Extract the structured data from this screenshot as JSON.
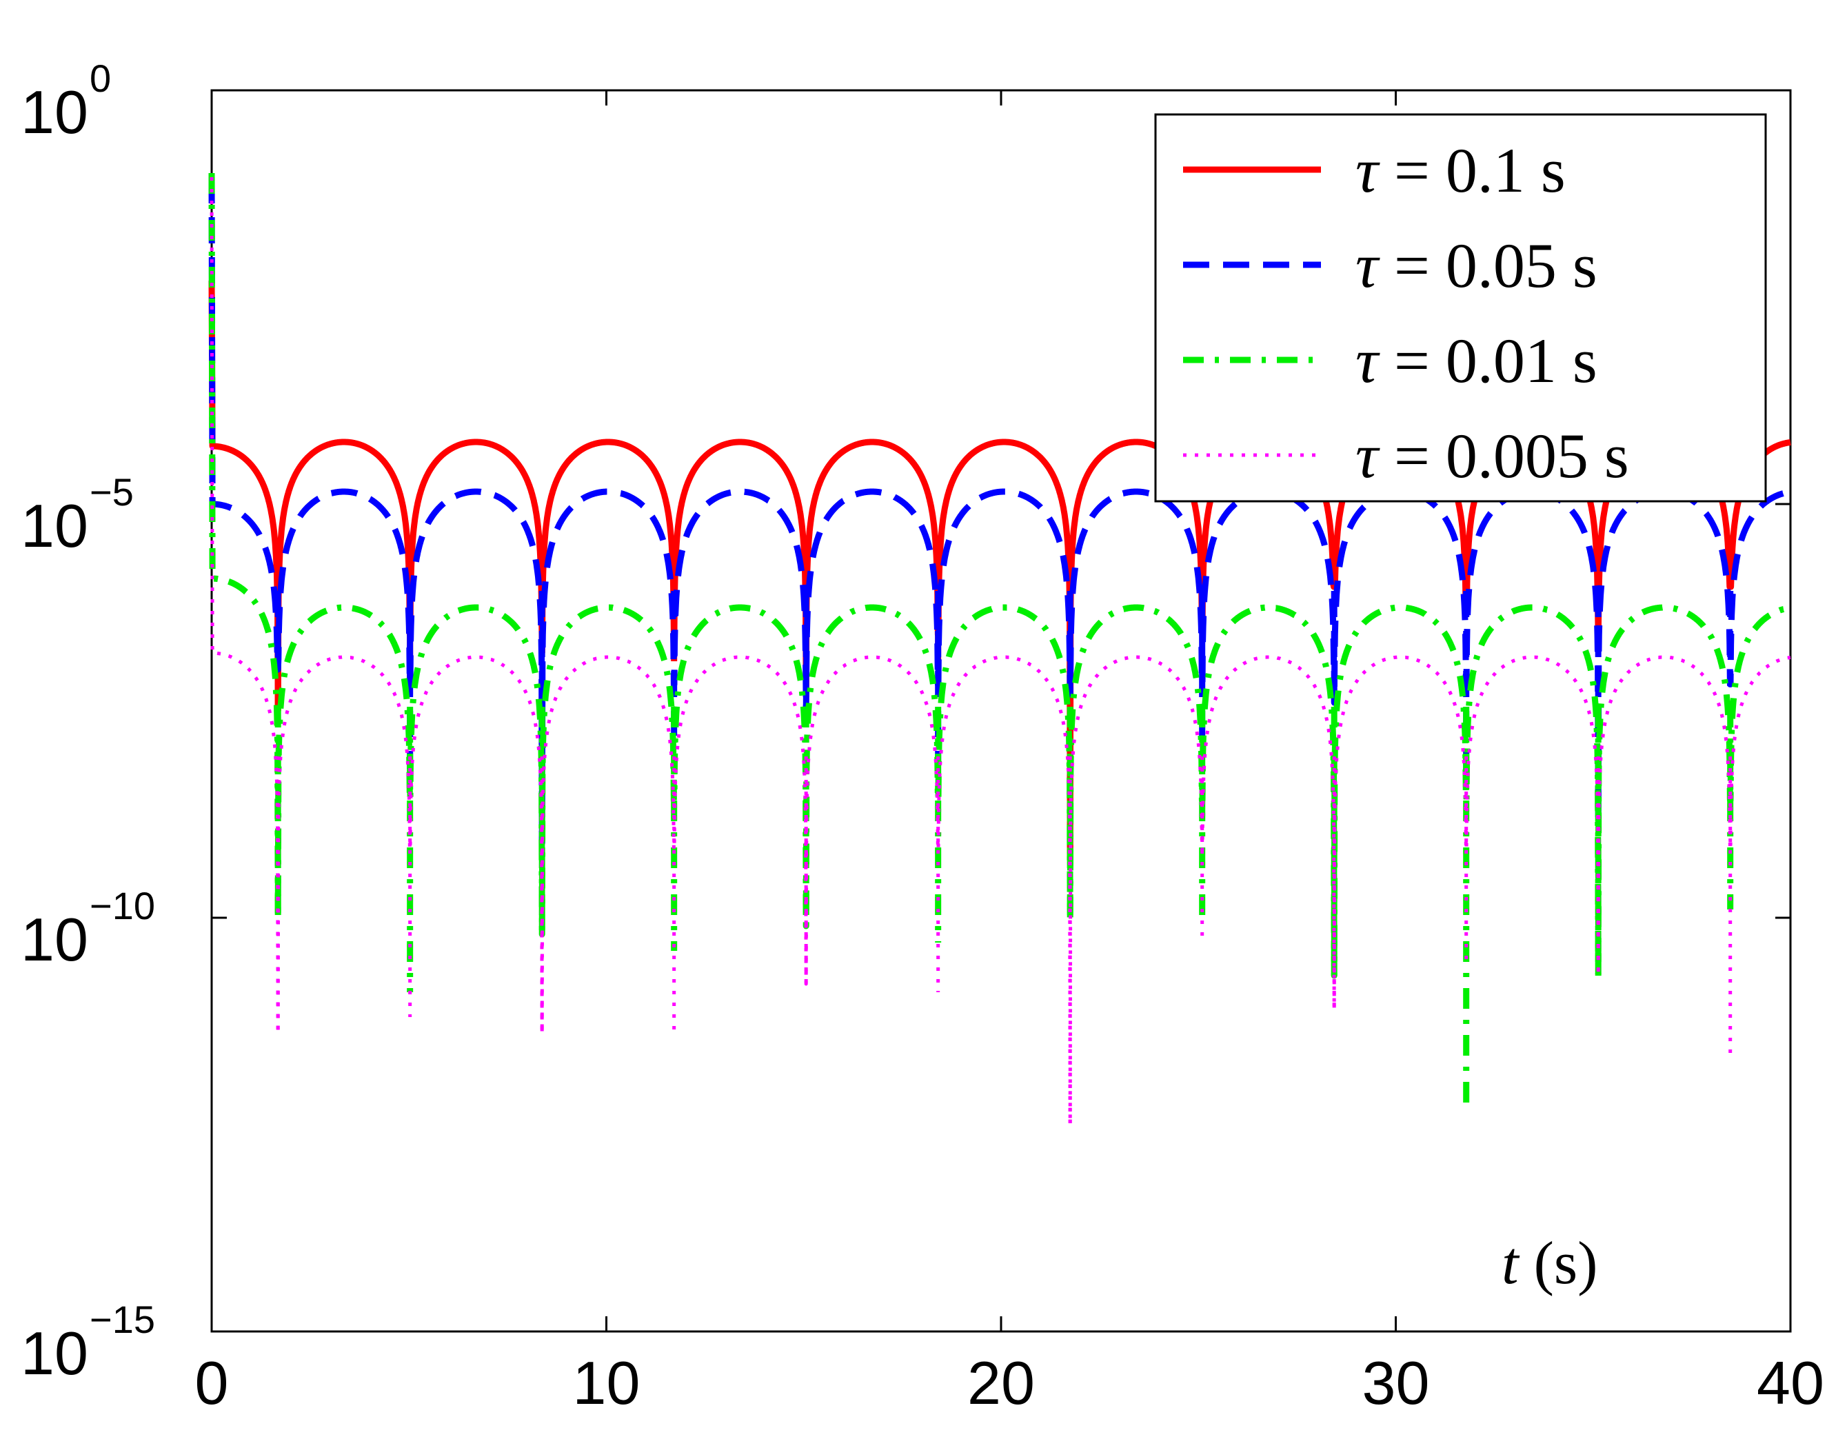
{
  "chart_data": {
    "type": "line",
    "title": "",
    "xlabel": "t (s)",
    "xlabel_parts": {
      "var": "t",
      "unit": " (s)"
    },
    "ylabel": "",
    "xlim": [
      0,
      40
    ],
    "ylim_log10": [
      -15,
      0
    ],
    "y_scale": "log",
    "grid": false,
    "legend_position": "top-right",
    "x_ticks": [
      {
        "value": 0,
        "label": "0"
      },
      {
        "value": 10,
        "label": "10"
      },
      {
        "value": 20,
        "label": "20"
      },
      {
        "value": 30,
        "label": "30"
      },
      {
        "value": 40,
        "label": "40"
      }
    ],
    "y_ticks": [
      {
        "exp": 0,
        "base": "10",
        "sup": "0"
      },
      {
        "exp": -5,
        "base": "10",
        "sup": "−5"
      },
      {
        "exp": -10,
        "base": "10",
        "sup": "−10"
      },
      {
        "exp": -15,
        "base": "10",
        "sup": "−15"
      }
    ],
    "period": 3.345,
    "first_dip": 1.68,
    "series": [
      {
        "name": "τ = 0.1 s",
        "legend_value": "0.1 s",
        "color": "#ff0000",
        "style": "solid",
        "initial_peak_log10": -2.3,
        "plateau_start_log10": -4.3,
        "arch_peak_log10": -4.25,
        "dip_floor_log10": [
          -7.5,
          -7.2,
          -6.8,
          -6.9,
          -7.3,
          -7.0,
          -9.3,
          -6.5,
          -6.0,
          -6.3,
          -6.6,
          -6.0
        ]
      },
      {
        "name": "τ = 0.05 s",
        "legend_value": "0.05 s",
        "color": "#0000ff",
        "style": "dashed",
        "initial_peak_log10": -1.05,
        "plateau_start_log10": -5.0,
        "arch_peak_log10": -4.85,
        "dip_floor_log10": [
          -7.0,
          -8.2,
          -9.1,
          -7.8,
          -7.5,
          -8.1,
          -7.3,
          -7.9,
          -7.4,
          -8.3,
          -8.8,
          -7.2
        ]
      },
      {
        "name": "τ = 0.01 s",
        "legend_value": "0.01 s",
        "color": "#00ee00",
        "style": "dashdot",
        "initial_peak_log10": -1.0,
        "plateau_start_log10": -5.9,
        "arch_peak_log10": -6.25,
        "dip_floor_log10": [
          -10.0,
          -10.9,
          -10.2,
          -10.4,
          -10.1,
          -10.3,
          -10.0,
          -10.0,
          -10.7,
          -12.3,
          -10.7,
          -9.9
        ]
      },
      {
        "name": "τ = 0.005 s",
        "legend_value": "0.005 s",
        "color": "#ff00ff",
        "style": "dotted",
        "initial_peak_log10": -1.05,
        "plateau_start_log10": -6.8,
        "arch_peak_log10": -6.85,
        "dip_floor_log10": [
          -11.4,
          -11.2,
          -11.4,
          -11.4,
          -10.8,
          -10.9,
          -12.5,
          -10.3,
          -11.1,
          -10.5,
          -10.7,
          -11.7
        ]
      }
    ]
  }
}
